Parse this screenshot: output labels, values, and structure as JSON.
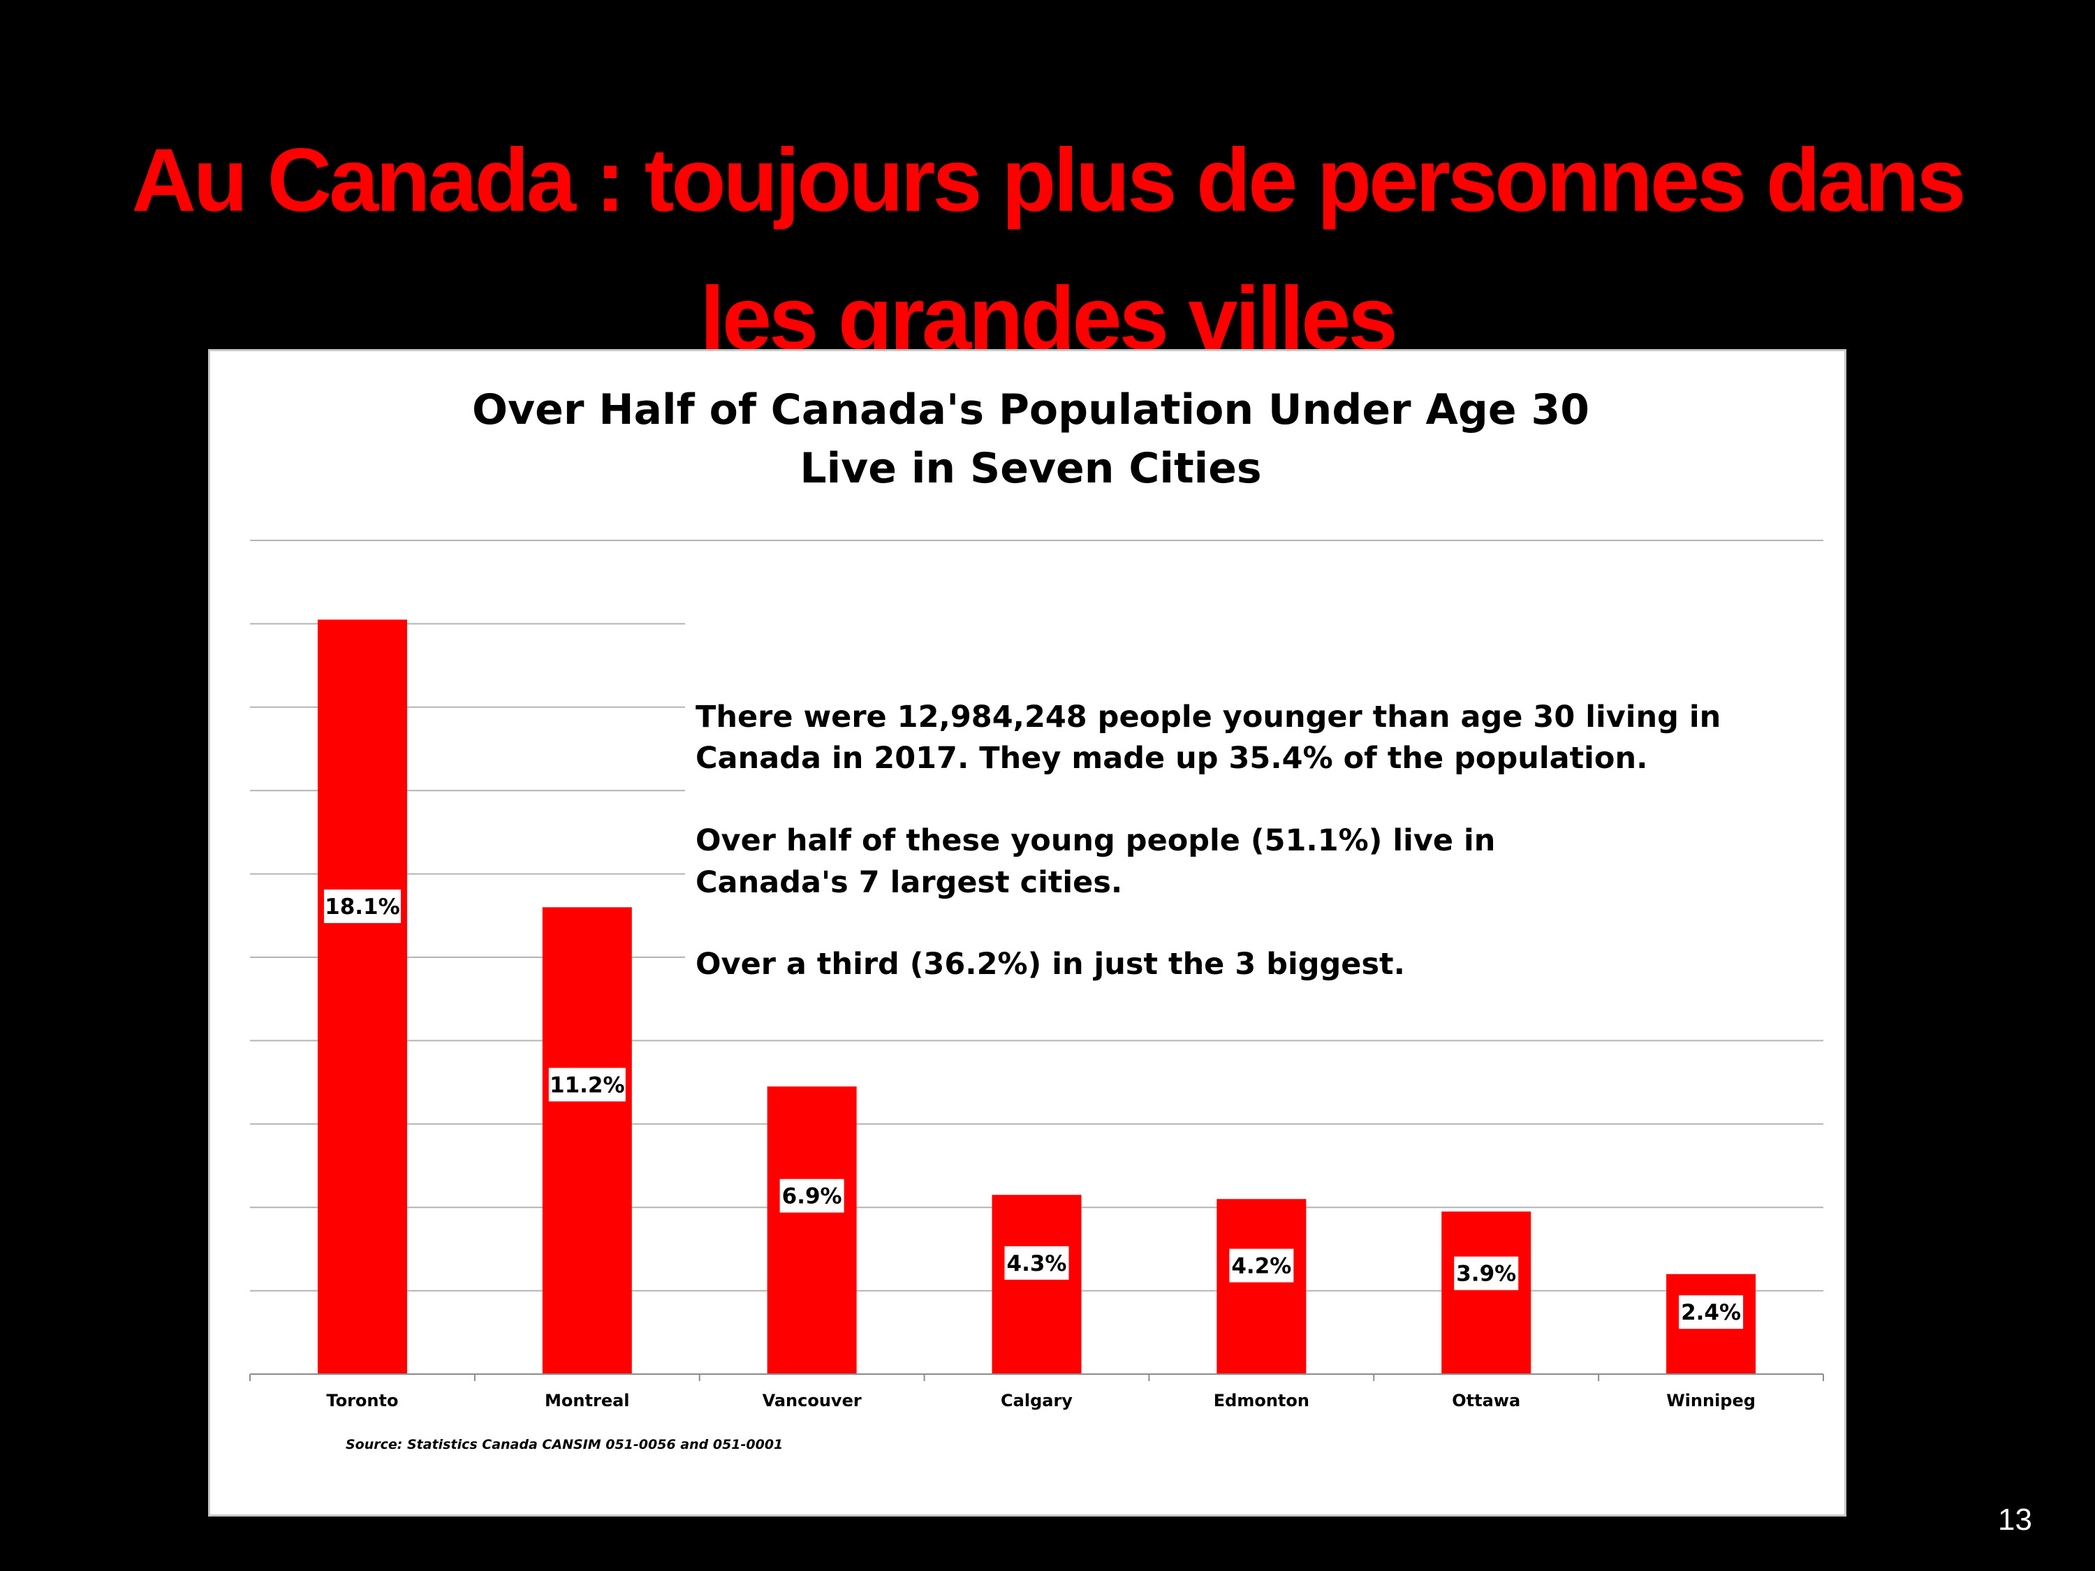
{
  "slide": {
    "title_line1": "Au Canada : toujours plus de personnes dans",
    "title_line2": "les grandes villes",
    "page_number": "13",
    "title_color": "#ff0000",
    "background": "#000000"
  },
  "chart_data": {
    "type": "bar",
    "title_line1": "Over Half of Canada's Population Under Age 30",
    "title_line2": "Live in Seven Cities",
    "categories": [
      "Toronto",
      "Montreal",
      "Vancouver",
      "Calgary",
      "Edmonton",
      "Ottawa",
      "Winnipeg"
    ],
    "values": [
      18.1,
      11.2,
      6.9,
      4.3,
      4.2,
      3.9,
      2.4
    ],
    "value_labels": [
      "18.1%",
      "11.2%",
      "6.9%",
      "4.3%",
      "4.2%",
      "3.9%",
      "2.4%"
    ],
    "ylim": [
      0,
      20
    ],
    "grid": true,
    "bar_color": "#ff0000",
    "annotation": [
      "There were 12,984,248 people younger than age 30 living in",
      "Canada in 2017. They made up 35.4% of the population.",
      "Over half of these young people (51.1%) live in",
      "Canada's 7 largest cities.",
      "Over a third (36.2%) in just the 3 biggest."
    ],
    "source": "Source:  Statistics Canada CANSIM 051-0056 and 051-0001"
  }
}
